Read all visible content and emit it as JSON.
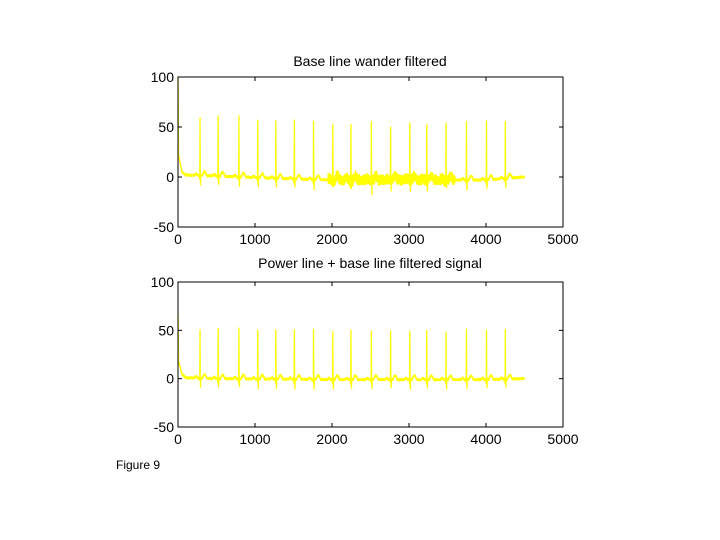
{
  "caption": "Figure 9",
  "colors": {
    "signal": "#ffff00",
    "axes": "#000000",
    "background": "#ffffff"
  },
  "chart_data": [
    {
      "type": "line",
      "title": "Base line wander filtered",
      "xlabel": "",
      "ylabel": "",
      "xlim": [
        0,
        5000
      ],
      "ylim": [
        -50,
        100
      ],
      "xticks": [
        0,
        1000,
        2000,
        3000,
        4000,
        5000
      ],
      "yticks": [
        -50,
        0,
        50,
        100
      ],
      "grid": false,
      "legend": "none",
      "series": [
        {
          "color": "#ffff00",
          "sample_count": 4500,
          "start_transient": [
            100,
            20
          ],
          "baseline_points": [
            [
              0,
              25
            ],
            [
              50,
              5
            ],
            [
              100,
              2
            ],
            [
              500,
              1
            ],
            [
              1500,
              -2
            ],
            [
              2000,
              -3
            ],
            [
              3000,
              -3
            ],
            [
              4000,
              -3
            ],
            [
              4480,
              0
            ]
          ],
          "beat_times": [
            285,
            520,
            790,
            1035,
            1270,
            1510,
            1760,
            2010,
            2245,
            2510,
            2760,
            3010,
            3230,
            3480,
            3745,
            4005,
            4250
          ],
          "beat_peaks": [
            58,
            60,
            60,
            58,
            57,
            58,
            57,
            58,
            59,
            59,
            58,
            58,
            58,
            55,
            59,
            58,
            56
          ],
          "noise_band": {
            "x_range": [
              1950,
              3600
            ],
            "amplitude": 5
          }
        }
      ]
    },
    {
      "type": "line",
      "title": "Power line + base line filtered signal",
      "xlabel": "",
      "ylabel": "",
      "xlim": [
        0,
        5000
      ],
      "ylim": [
        -50,
        100
      ],
      "xticks": [
        0,
        1000,
        2000,
        3000,
        4000,
        5000
      ],
      "yticks": [
        -50,
        0,
        50,
        100
      ],
      "grid": false,
      "legend": "none",
      "series": [
        {
          "color": "#ffff00",
          "sample_count": 4500,
          "start_transient": [
            65,
            20
          ],
          "baseline_points": [
            [
              0,
              20
            ],
            [
              50,
              5
            ],
            [
              100,
              1
            ],
            [
              500,
              0
            ],
            [
              2000,
              -1
            ],
            [
              4000,
              -1
            ],
            [
              4480,
              0
            ]
          ],
          "beat_times": [
            285,
            520,
            790,
            1035,
            1270,
            1510,
            1760,
            2010,
            2245,
            2510,
            2760,
            3010,
            3230,
            3480,
            3745,
            4005,
            4250
          ],
          "beat_peaks": [
            49,
            51,
            52,
            51,
            50,
            51,
            51,
            50,
            52,
            51,
            51,
            51,
            51,
            50,
            52,
            51,
            51
          ],
          "noise_band": null
        }
      ]
    }
  ]
}
